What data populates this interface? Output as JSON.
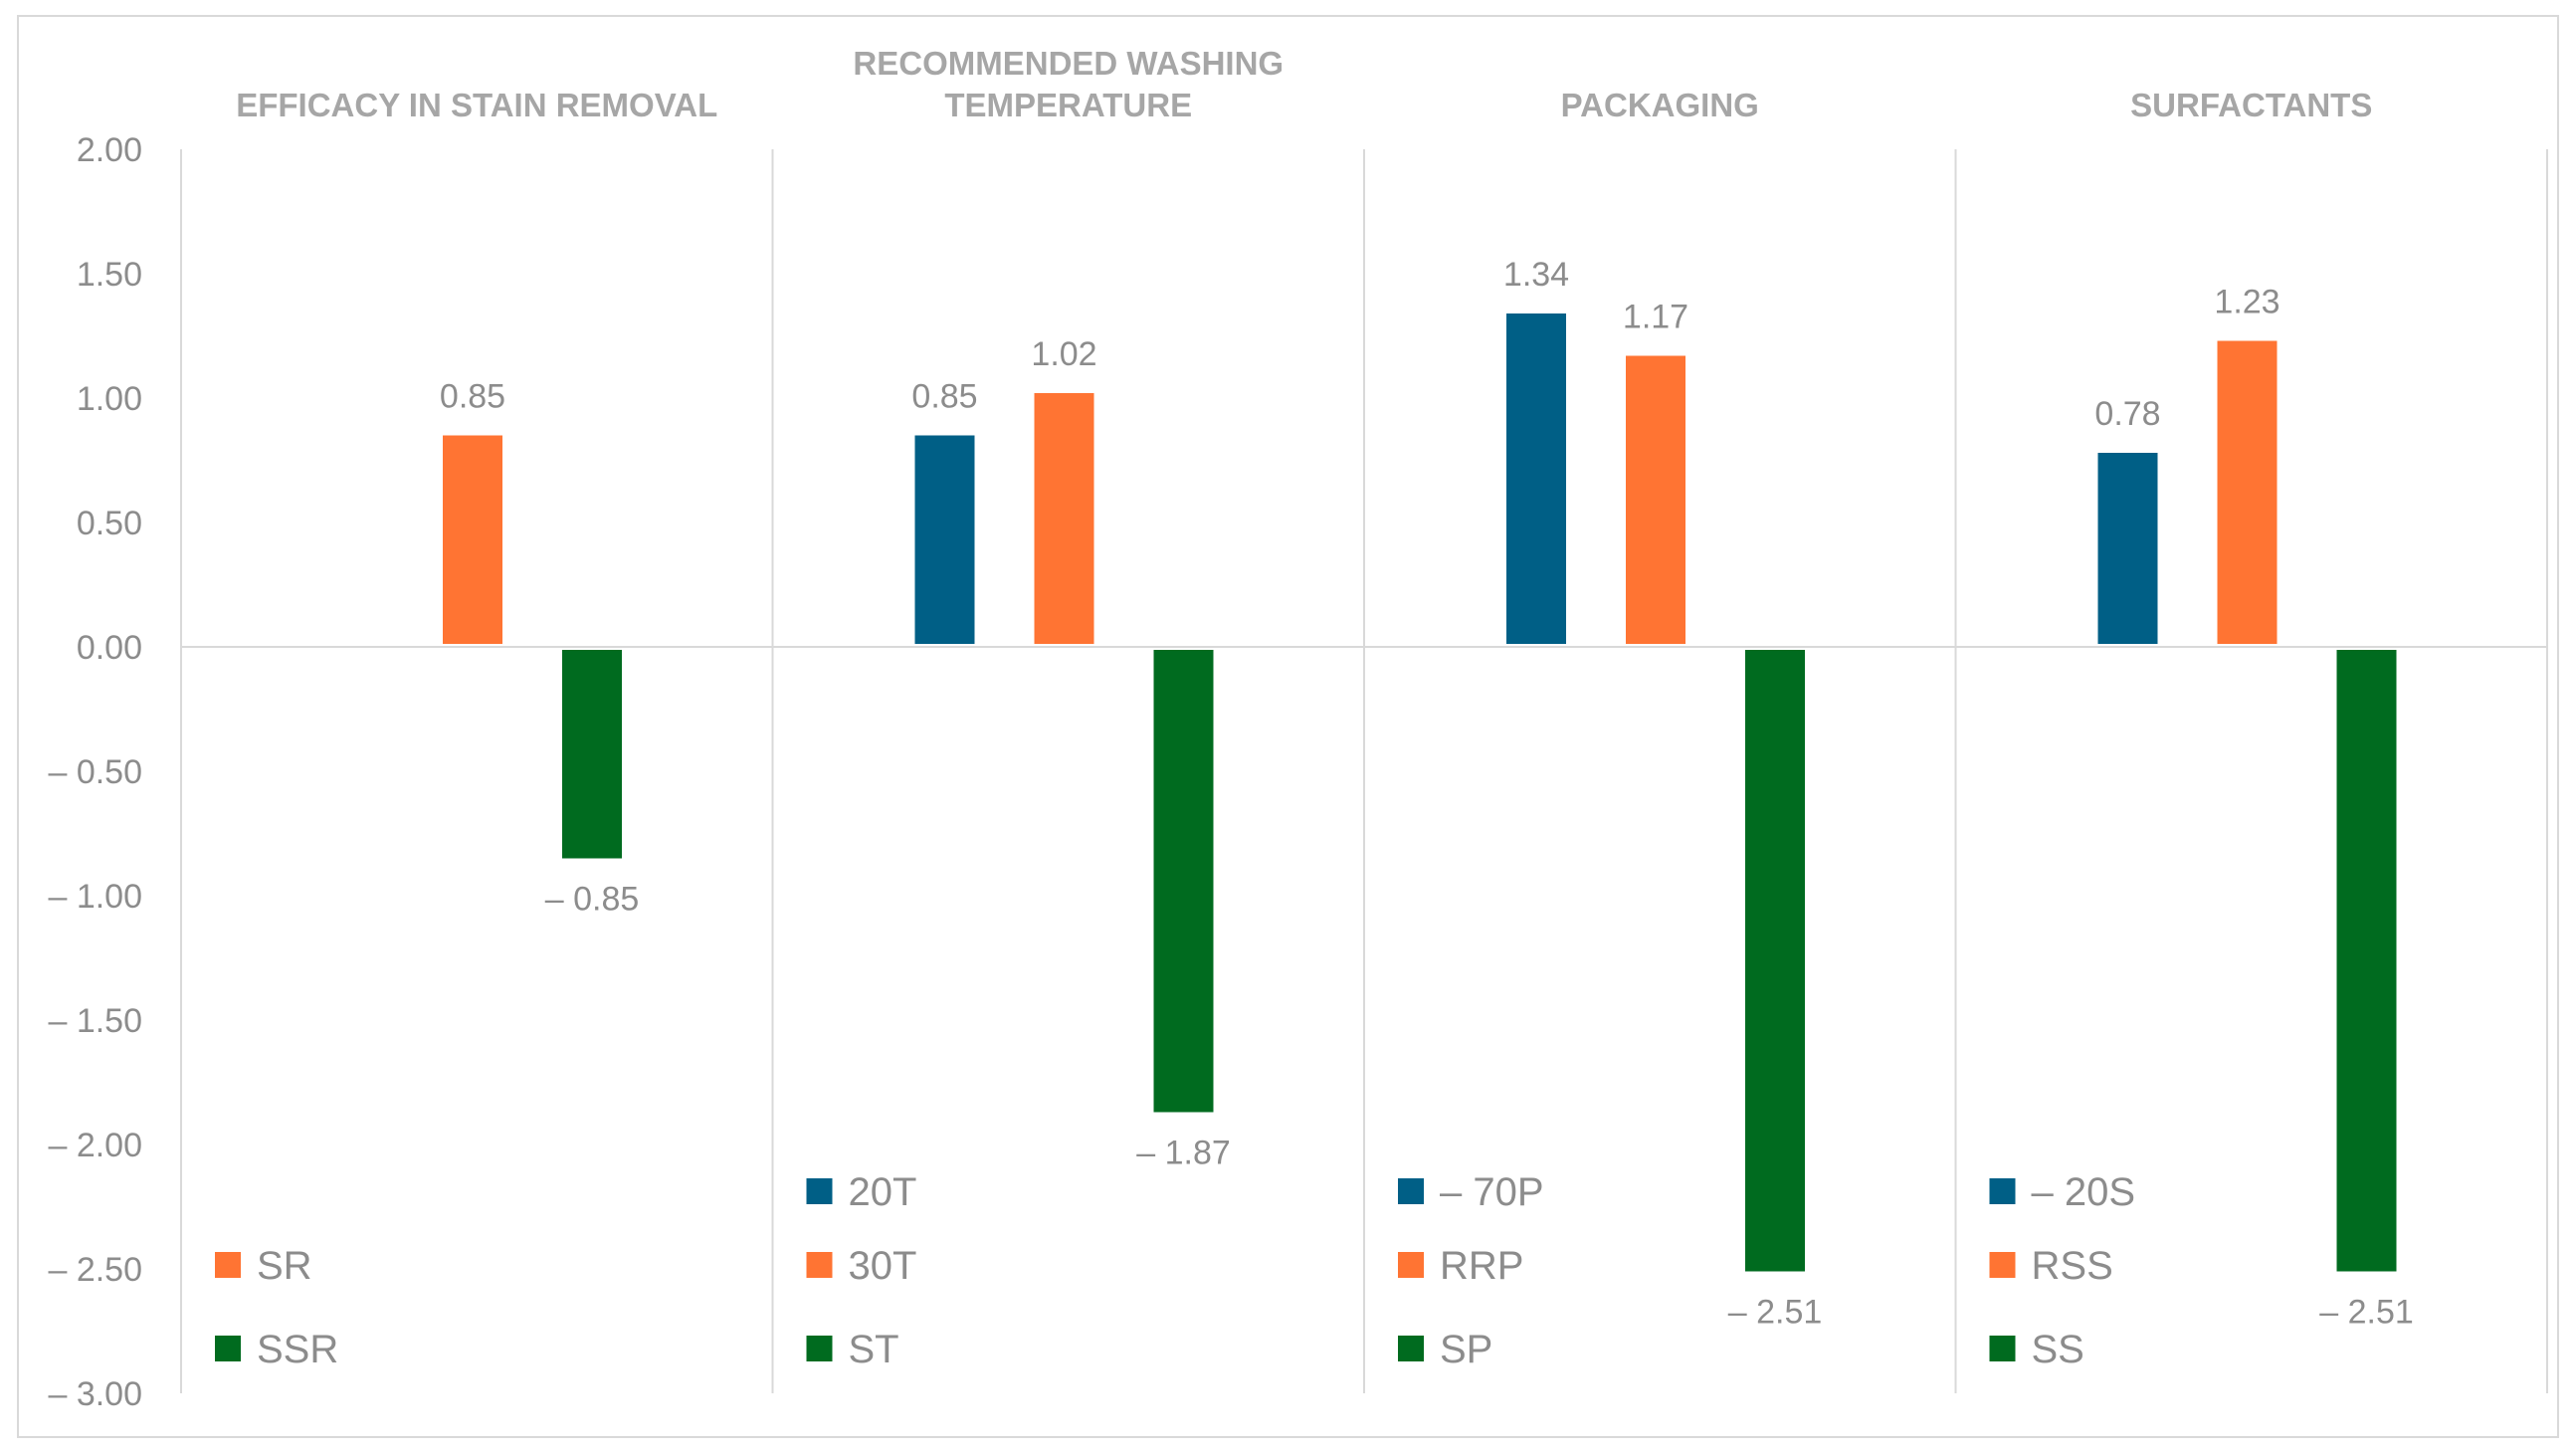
{
  "chart_data": {
    "type": "bar",
    "ylim": [
      -3,
      2
    ],
    "yticks": [
      2,
      1.5,
      1,
      0.5,
      0,
      -0.5,
      -1,
      -1.5,
      -2,
      -2.5,
      -3
    ],
    "ytick_labels": [
      "2.00",
      "1.50",
      "1.00",
      "0.50",
      "0.00",
      "– 0.50",
      "– 1.00",
      "– 1.50",
      "– 2.00",
      "– 2.50",
      "– 3.00"
    ],
    "grid": false,
    "colors": {
      "blue": "#005f86",
      "orange": "#ff7433",
      "green": "#006b1f"
    },
    "panels": [
      {
        "title": [
          "EFFICACY IN STAIN REMOVAL"
        ],
        "bars": [
          {
            "slot": 1,
            "name": "SR",
            "value": 0.85,
            "label": "0.85",
            "color": "orange"
          },
          {
            "slot": 2,
            "name": "SSR",
            "value": -0.85,
            "label": "– 0.85",
            "color": "green"
          }
        ],
        "legend": [
          {
            "name": "SR",
            "color": "orange"
          },
          {
            "name": "SSR",
            "color": "green"
          }
        ]
      },
      {
        "title": [
          "RECOMMENDED WASHING",
          "TEMPERATURE"
        ],
        "bars": [
          {
            "slot": 0,
            "name": "20T",
            "value": 0.85,
            "label": "0.85",
            "color": "blue"
          },
          {
            "slot": 1,
            "name": "30T",
            "value": 1.02,
            "label": "1.02",
            "color": "orange"
          },
          {
            "slot": 2,
            "name": "ST",
            "value": -1.87,
            "label": "– 1.87",
            "color": "green"
          }
        ],
        "legend": [
          {
            "name": "20T",
            "color": "blue"
          },
          {
            "name": "30T",
            "color": "orange"
          },
          {
            "name": "ST",
            "color": "green"
          }
        ]
      },
      {
        "title": [
          "PACKAGING"
        ],
        "bars": [
          {
            "slot": 0,
            "name": "– 70P",
            "value": 1.34,
            "label": "1.34",
            "color": "blue"
          },
          {
            "slot": 1,
            "name": "RRP",
            "value": 1.17,
            "label": "1.17",
            "color": "orange"
          },
          {
            "slot": 2,
            "name": "SP",
            "value": -2.51,
            "label": "– 2.51",
            "color": "green"
          }
        ],
        "legend": [
          {
            "name": "– 70P",
            "color": "blue"
          },
          {
            "name": "RRP",
            "color": "orange"
          },
          {
            "name": "SP",
            "color": "green"
          }
        ]
      },
      {
        "title": [
          "SURFACTANTS"
        ],
        "bars": [
          {
            "slot": 0,
            "name": "– 20S",
            "value": 0.78,
            "label": "0.78",
            "color": "blue"
          },
          {
            "slot": 1,
            "name": "RSS",
            "value": 1.23,
            "label": "1.23",
            "color": "orange"
          },
          {
            "slot": 2,
            "name": "SS",
            "value": -2.51,
            "label": "– 2.51",
            "color": "green"
          }
        ],
        "legend": [
          {
            "name": "– 20S",
            "color": "blue"
          },
          {
            "name": "RSS",
            "color": "orange"
          },
          {
            "name": "SS",
            "color": "green"
          }
        ]
      }
    ]
  }
}
